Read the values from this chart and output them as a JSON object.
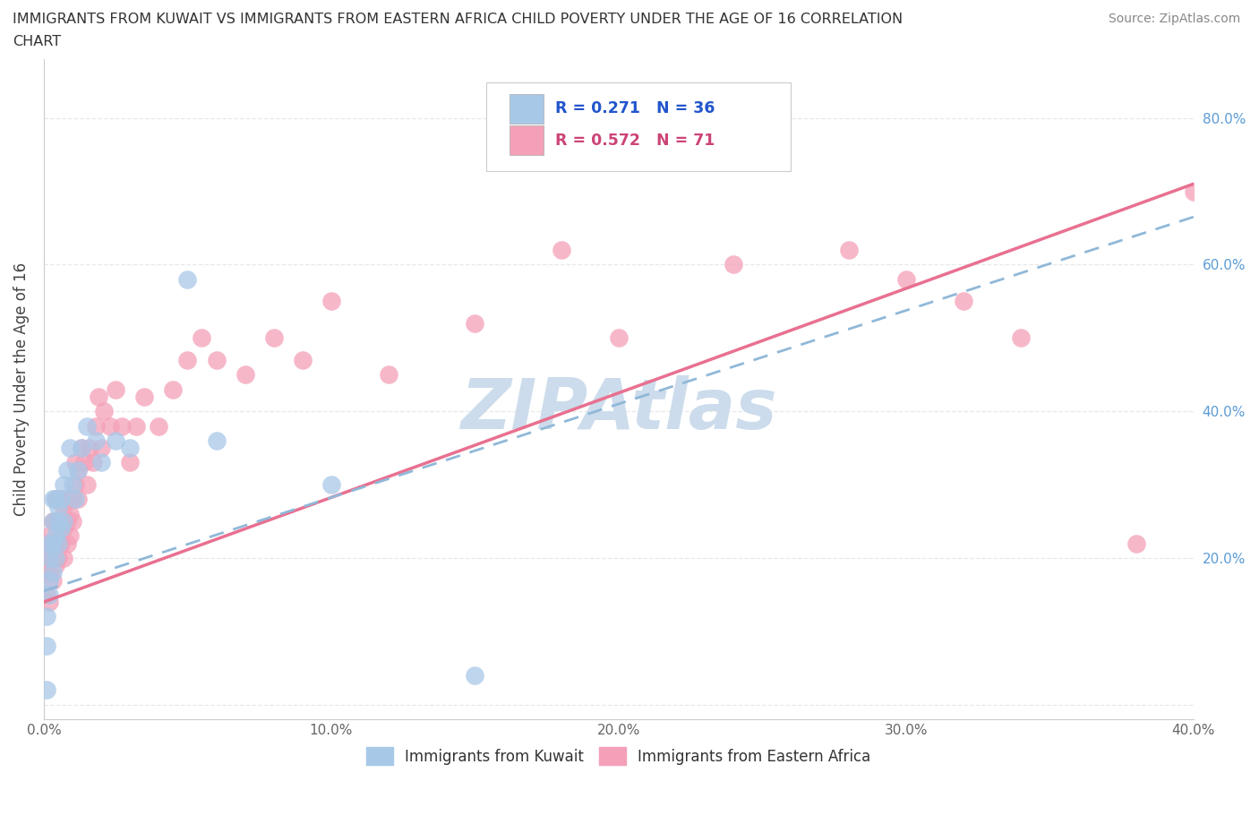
{
  "title_line1": "IMMIGRANTS FROM KUWAIT VS IMMIGRANTS FROM EASTERN AFRICA CHILD POVERTY UNDER THE AGE OF 16 CORRELATION",
  "title_line2": "CHART",
  "source_text": "Source: ZipAtlas.com",
  "ylabel": "Child Poverty Under the Age of 16",
  "xlabel_kuwait": "Immigrants from Kuwait",
  "xlabel_eastern": "Immigrants from Eastern Africa",
  "xlim": [
    0.0,
    0.4
  ],
  "ylim": [
    -0.02,
    0.88
  ],
  "xticks": [
    0.0,
    0.1,
    0.2,
    0.3,
    0.4
  ],
  "yticks": [
    0.0,
    0.2,
    0.4,
    0.6,
    0.8
  ],
  "xticklabels": [
    "0.0%",
    "10.0%",
    "20.0%",
    "30.0%",
    "40.0%"
  ],
  "yticklabels_right": [
    "",
    "20.0%",
    "40.0%",
    "60.0%",
    "80.0%"
  ],
  "kuwait_R": 0.271,
  "kuwait_N": 36,
  "eastern_R": 0.572,
  "eastern_N": 71,
  "kuwait_color": "#a8c8e8",
  "eastern_color": "#f4a0b8",
  "kuwait_line_color": "#90b8d8",
  "eastern_line_color": "#e87090",
  "watermark_color": "#ccdcec",
  "background_color": "#ffffff",
  "grid_color": "#e8e8e8",
  "kuwait_x": [
    0.001,
    0.001,
    0.001,
    0.002,
    0.002,
    0.002,
    0.002,
    0.003,
    0.003,
    0.003,
    0.003,
    0.004,
    0.004,
    0.004,
    0.005,
    0.005,
    0.005,
    0.006,
    0.006,
    0.007,
    0.007,
    0.008,
    0.009,
    0.01,
    0.011,
    0.012,
    0.013,
    0.015,
    0.018,
    0.02,
    0.025,
    0.03,
    0.05,
    0.06,
    0.1,
    0.15
  ],
  "kuwait_y": [
    0.02,
    0.08,
    0.12,
    0.15,
    0.17,
    0.2,
    0.22,
    0.18,
    0.22,
    0.25,
    0.28,
    0.2,
    0.23,
    0.28,
    0.22,
    0.25,
    0.27,
    0.24,
    0.28,
    0.25,
    0.3,
    0.32,
    0.35,
    0.3,
    0.28,
    0.32,
    0.35,
    0.38,
    0.36,
    0.33,
    0.36,
    0.35,
    0.58,
    0.36,
    0.3,
    0.04
  ],
  "eastern_x": [
    0.001,
    0.001,
    0.001,
    0.002,
    0.002,
    0.002,
    0.002,
    0.003,
    0.003,
    0.003,
    0.003,
    0.004,
    0.004,
    0.004,
    0.004,
    0.005,
    0.005,
    0.005,
    0.005,
    0.006,
    0.006,
    0.006,
    0.007,
    0.007,
    0.007,
    0.008,
    0.008,
    0.008,
    0.009,
    0.009,
    0.01,
    0.01,
    0.011,
    0.011,
    0.012,
    0.012,
    0.013,
    0.014,
    0.015,
    0.016,
    0.017,
    0.018,
    0.019,
    0.02,
    0.021,
    0.023,
    0.025,
    0.027,
    0.03,
    0.032,
    0.035,
    0.04,
    0.045,
    0.05,
    0.055,
    0.06,
    0.07,
    0.08,
    0.09,
    0.1,
    0.12,
    0.15,
    0.18,
    0.2,
    0.24,
    0.28,
    0.3,
    0.32,
    0.34,
    0.38,
    0.4
  ],
  "eastern_y": [
    0.15,
    0.18,
    0.22,
    0.14,
    0.18,
    0.2,
    0.23,
    0.17,
    0.2,
    0.22,
    0.25,
    0.19,
    0.22,
    0.25,
    0.28,
    0.2,
    0.22,
    0.25,
    0.28,
    0.22,
    0.25,
    0.28,
    0.2,
    0.24,
    0.27,
    0.22,
    0.25,
    0.28,
    0.23,
    0.26,
    0.25,
    0.28,
    0.3,
    0.33,
    0.28,
    0.32,
    0.35,
    0.33,
    0.3,
    0.35,
    0.33,
    0.38,
    0.42,
    0.35,
    0.4,
    0.38,
    0.43,
    0.38,
    0.33,
    0.38,
    0.42,
    0.38,
    0.43,
    0.47,
    0.5,
    0.47,
    0.45,
    0.5,
    0.47,
    0.55,
    0.45,
    0.52,
    0.62,
    0.5,
    0.6,
    0.62,
    0.58,
    0.55,
    0.5,
    0.22,
    0.7
  ]
}
